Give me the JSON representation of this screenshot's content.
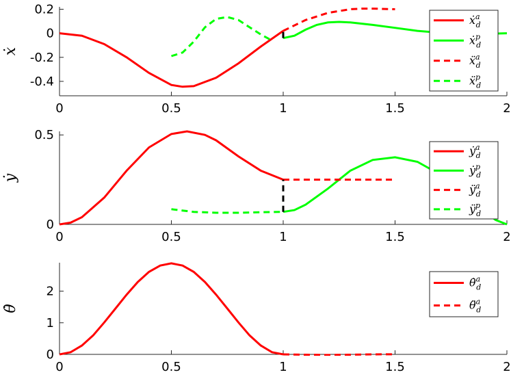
{
  "colors": {
    "red": "#ff0000",
    "green": "#00ff00",
    "black": "#000000"
  },
  "chart_data": [
    {
      "type": "line",
      "ylabel": "ẋ",
      "xlim": [
        0,
        2
      ],
      "ylim": [
        -0.52,
        0.22
      ],
      "xticks": [
        0,
        0.5,
        1,
        1.5,
        2
      ],
      "xtick_labels": [
        "0",
        "0.5",
        "1",
        "1.5",
        "2"
      ],
      "yticks": [
        -0.4,
        -0.2,
        0,
        0.2
      ],
      "ytick_labels": [
        "-0.4",
        "-0.2",
        "0",
        "0.2"
      ],
      "legend_position": "top-right",
      "series": [
        {
          "name": "ẋ_d^a",
          "color": "#ff0000",
          "dash": "solid",
          "x": [
            0,
            0.1,
            0.2,
            0.3,
            0.4,
            0.5,
            0.55,
            0.6,
            0.7,
            0.8,
            0.9,
            1.0
          ],
          "y": [
            0,
            -0.02,
            -0.09,
            -0.2,
            -0.33,
            -0.43,
            -0.445,
            -0.44,
            -0.37,
            -0.25,
            -0.11,
            0.02
          ]
        },
        {
          "name": "ẋ_d^p",
          "color": "#00ff00",
          "dash": "solid",
          "x": [
            1.0,
            1.05,
            1.1,
            1.15,
            1.2,
            1.25,
            1.3,
            1.4,
            1.5,
            1.6,
            1.7,
            1.8,
            1.9,
            2.0
          ],
          "y": [
            -0.04,
            -0.02,
            0.03,
            0.07,
            0.09,
            0.095,
            0.09,
            0.07,
            0.045,
            0.02,
            0.005,
            -0.005,
            -0.005,
            0
          ]
        },
        {
          "name": "ẍ_d^a",
          "color": "#ff0000",
          "dash": "dashed",
          "x": [
            1.0,
            1.1,
            1.2,
            1.3,
            1.35,
            1.4,
            1.5
          ],
          "y": [
            0.02,
            0.11,
            0.17,
            0.2,
            0.205,
            0.205,
            0.2
          ]
        },
        {
          "name": "ẍ_d^p",
          "color": "#00ff00",
          "dash": "dashed",
          "x": [
            0.5,
            0.55,
            0.6,
            0.65,
            0.7,
            0.75,
            0.8,
            0.85,
            0.9,
            0.95
          ],
          "y": [
            -0.19,
            -0.16,
            -0.07,
            0.05,
            0.12,
            0.135,
            0.11,
            0.05,
            -0.01,
            -0.06
          ]
        },
        {
          "name": "",
          "color": "#000000",
          "dash": "dashed",
          "x": [
            1.0,
            1.0
          ],
          "y": [
            -0.04,
            0.02
          ]
        }
      ],
      "legend": [
        "ẋ_d^a",
        "ẋ_d^p",
        "ẍ_d^a",
        "ẍ_d^p"
      ]
    },
    {
      "type": "line",
      "ylabel": "ẏ",
      "xlim": [
        0,
        2
      ],
      "ylim": [
        0,
        0.52
      ],
      "xticks": [
        0,
        0.5,
        1,
        1.5,
        2
      ],
      "xtick_labels": [
        "0",
        "0.5",
        "1",
        "1.5",
        "2"
      ],
      "yticks": [
        0,
        0.5
      ],
      "ytick_labels": [
        "0",
        "0.5"
      ],
      "legend_position": "top-right",
      "series": [
        {
          "name": "ẏ_d^a",
          "color": "#ff0000",
          "dash": "solid",
          "x": [
            0,
            0.05,
            0.1,
            0.2,
            0.3,
            0.4,
            0.5,
            0.57,
            0.65,
            0.7,
            0.8,
            0.9,
            1.0
          ],
          "y": [
            0,
            0.01,
            0.04,
            0.15,
            0.3,
            0.43,
            0.505,
            0.52,
            0.5,
            0.47,
            0.38,
            0.3,
            0.25
          ]
        },
        {
          "name": "ẏ_d^p",
          "color": "#00ff00",
          "dash": "solid",
          "x": [
            1.0,
            1.05,
            1.1,
            1.2,
            1.3,
            1.4,
            1.5,
            1.6,
            1.7,
            1.8,
            1.9,
            1.95,
            2.0
          ],
          "y": [
            0.07,
            0.08,
            0.11,
            0.2,
            0.3,
            0.36,
            0.375,
            0.35,
            0.28,
            0.17,
            0.07,
            0.025,
            0
          ]
        },
        {
          "name": "ÿ_d^a",
          "color": "#ff0000",
          "dash": "dashed",
          "x": [
            1.0,
            1.25,
            1.5
          ],
          "y": [
            0.25,
            0.25,
            0.25
          ]
        },
        {
          "name": "ÿ_d^p",
          "color": "#00ff00",
          "dash": "dashed",
          "x": [
            0.5,
            0.6,
            0.7,
            0.8,
            0.9,
            1.0
          ],
          "y": [
            0.085,
            0.07,
            0.065,
            0.065,
            0.068,
            0.07
          ]
        },
        {
          "name": "",
          "color": "#000000",
          "dash": "dashed",
          "x": [
            1.0,
            1.0
          ],
          "y": [
            0.07,
            0.25
          ]
        }
      ],
      "legend": [
        "ẏ_d^a",
        "ẏ_d^p",
        "ÿ_d^a",
        "ÿ_d^p"
      ]
    },
    {
      "type": "line",
      "ylabel": "θ̇",
      "xlim": [
        0,
        2
      ],
      "ylim": [
        0,
        2.9
      ],
      "xticks": [
        0,
        0.5,
        1,
        1.5,
        2
      ],
      "xtick_labels": [
        "0",
        "0.5",
        "1",
        "1.5",
        "2"
      ],
      "yticks": [
        0,
        1,
        2
      ],
      "ytick_labels": [
        "0",
        "1",
        "2"
      ],
      "legend_position": "top-right",
      "series": [
        {
          "name": "θ̇_d^a",
          "color": "#ff0000",
          "dash": "solid",
          "x": [
            0,
            0.05,
            0.1,
            0.15,
            0.2,
            0.25,
            0.3,
            0.35,
            0.4,
            0.45,
            0.5,
            0.55,
            0.6,
            0.65,
            0.7,
            0.75,
            0.8,
            0.85,
            0.9,
            0.95,
            1.0
          ],
          "y": [
            0,
            0.07,
            0.28,
            0.6,
            1.01,
            1.45,
            1.89,
            2.29,
            2.61,
            2.81,
            2.88,
            2.81,
            2.61,
            2.29,
            1.89,
            1.45,
            1.01,
            0.6,
            0.28,
            0.07,
            0
          ]
        },
        {
          "name": "θ̈_d^a",
          "color": "#ff0000",
          "dash": "dashed",
          "x": [
            1.0,
            1.1,
            1.2,
            1.3,
            1.4,
            1.5
          ],
          "y": [
            0,
            -0.01,
            -0.02,
            -0.01,
            0,
            0.005
          ]
        }
      ],
      "legend": [
        "θ̇_d^a",
        "θ̈_d^a"
      ]
    }
  ]
}
